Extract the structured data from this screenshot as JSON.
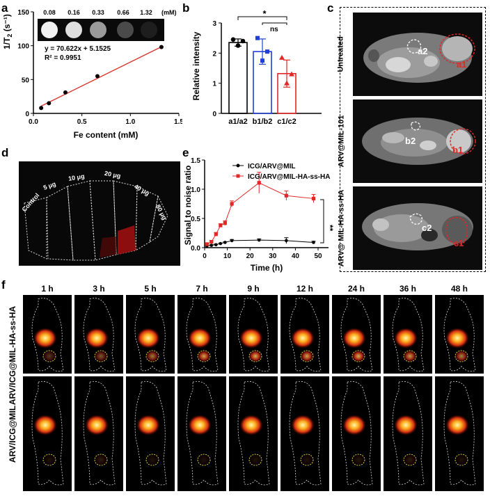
{
  "panel_labels": {
    "a": "a",
    "b": "b",
    "c": "c",
    "d": "d",
    "e": "e",
    "f": "f"
  },
  "panel_a": {
    "concentrations": [
      "0.08",
      "0.16",
      "0.33",
      "0.66",
      "1.32"
    ],
    "conc_unit": "(mM)",
    "equation": "y = 70.622x + 5.1525",
    "r2": "R² = 0.9951",
    "ylabel_main": "1/T",
    "ylabel_sub": "2",
    "ylabel_unit": " (s⁻¹)",
    "xlabel": "Fe content (mM)",
    "x_ticks": [
      "0.0",
      "0.5",
      "1.0",
      "1.5"
    ],
    "y_ticks": [
      "0",
      "50",
      "100",
      "150"
    ]
  },
  "panel_b": {
    "ylabel": "Relative intensity",
    "y_ticks": [
      "0",
      "1",
      "2",
      "3"
    ],
    "categories": [
      "a1/a2",
      "b1/b2",
      "c1/c2"
    ],
    "sig1": "*",
    "sig2": "ns"
  },
  "panel_c": {
    "rows": [
      {
        "label": "Untreated",
        "roi_white": "a2",
        "roi_red": "a1"
      },
      {
        "label": "ARV@MIL-101",
        "roi_white": "b2",
        "roi_red": "b1"
      },
      {
        "label": "ARV@ MIL-HA-ss-HA",
        "roi_white": "c2",
        "roi_red": "c1"
      }
    ]
  },
  "panel_d": {
    "labels": [
      "Control",
      "5 μg",
      "10 μg",
      "20 μg",
      "40 μg",
      "80 μg"
    ]
  },
  "panel_e": {
    "ylabel": "Signal to noise ratio",
    "xlabel": "Time (h)",
    "x_ticks": [
      "0",
      "10",
      "20",
      "30",
      "40",
      "50"
    ],
    "y_ticks": [
      "0.0",
      "0.5",
      "1.0",
      "1.5"
    ],
    "legend": [
      "ICG/ARV@MIL",
      "ICG/ARV@MIL-HA-ss-HA"
    ],
    "sig": "**"
  },
  "panel_f": {
    "times": [
      "1 h",
      "3 h",
      "5 h",
      "7 h",
      "9 h",
      "12 h",
      "24 h",
      "36 h",
      "48 h"
    ],
    "row_labels": [
      "ARV/ICG@MIL-HA-ss-HA",
      "ARV/ICG@MIL"
    ]
  },
  "colors": {
    "red": "#e32626",
    "blue": "#1f3fd6",
    "black": "#000000",
    "fit": "#d9312b"
  },
  "chart_data": [
    {
      "type": "scatter",
      "panel": "a",
      "x": [
        0.08,
        0.16,
        0.33,
        0.66,
        1.32
      ],
      "y": [
        8,
        15,
        31,
        55,
        98
      ],
      "fit": {
        "slope": 70.622,
        "intercept": 5.1525
      },
      "xlabel": "Fe content (mM)",
      "ylabel": "1/T2 (s-1)",
      "xlim": [
        0,
        1.5
      ],
      "ylim": [
        0,
        150
      ]
    },
    {
      "type": "bar",
      "panel": "b",
      "categories": [
        "a1/a2",
        "b1/b2",
        "c1/c2"
      ],
      "values": [
        2.35,
        2.05,
        1.32
      ],
      "errors": [
        0.12,
        0.42,
        0.45
      ],
      "points": [
        [
          2.45,
          2.25,
          2.4
        ],
        [
          2.5,
          1.75,
          2.05
        ],
        [
          1.85,
          1.0,
          1.3
        ]
      ],
      "colors": [
        "#000000",
        "#1f3fd6",
        "#e32626"
      ],
      "ylabel": "Relative intensity",
      "ylim": [
        0,
        3
      ]
    },
    {
      "type": "line",
      "panel": "e",
      "xlabel": "Time (h)",
      "ylabel": "Signal to noise ratio",
      "xlim": [
        0,
        50
      ],
      "ylim": [
        0,
        1.5
      ],
      "x": [
        1,
        3,
        5,
        7,
        9,
        12,
        24,
        36,
        48
      ],
      "series": [
        {
          "name": "ICG/ARV@MIL",
          "values": [
            0.03,
            0.04,
            0.05,
            0.07,
            0.09,
            0.12,
            0.13,
            0.12,
            0.09
          ],
          "errors": [
            0.01,
            0.01,
            0.01,
            0.01,
            0.01,
            0.02,
            0.02,
            0.05,
            0.02
          ]
        },
        {
          "name": "ICG/ARV@MIL-HA-ss-HA",
          "values": [
            0.06,
            0.1,
            0.23,
            0.38,
            0.42,
            0.75,
            1.11,
            0.89,
            0.84
          ],
          "errors": [
            0.01,
            0.02,
            0.03,
            0.03,
            0.04,
            0.05,
            0.18,
            0.08,
            0.07
          ]
        }
      ]
    }
  ]
}
